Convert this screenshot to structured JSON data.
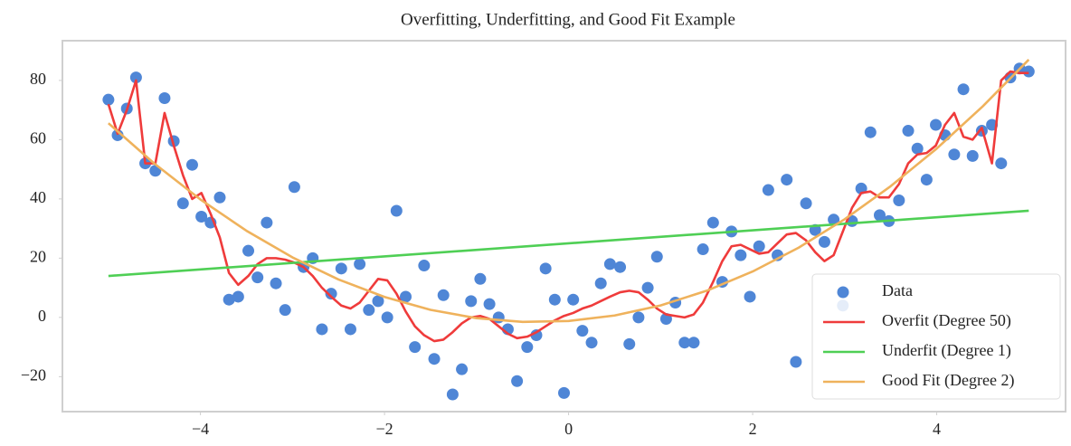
{
  "chart_data": {
    "type": "scatter",
    "title": "Overfitting, Underfitting, and Good Fit Example",
    "xlim": [
      -5.5,
      5.4
    ],
    "ylim": [
      -31.8,
      93.4
    ],
    "xticks": [
      {
        "value": -4,
        "label": "−4"
      },
      {
        "value": -2,
        "label": "−2"
      },
      0,
      2,
      4
    ],
    "yticks": [
      {
        "value": -20,
        "label": "−20"
      },
      0,
      20,
      40,
      60,
      80
    ],
    "grid": false,
    "legend": "lower right",
    "series": [
      {
        "name": "Data",
        "type": "scatter",
        "color": "#4f86d6",
        "x": [
          -5.0,
          -4.9,
          -4.8,
          -4.7,
          -4.6,
          -4.49,
          -4.39,
          -4.29,
          -4.19,
          -4.09,
          -3.99,
          -3.89,
          -3.79,
          -3.69,
          -3.59,
          -3.48,
          -3.38,
          -3.28,
          -3.18,
          -3.08,
          -2.98,
          -2.88,
          -2.78,
          -2.68,
          -2.58,
          -2.47,
          -2.37,
          -2.27,
          -2.17,
          -2.07,
          -1.97,
          -1.87,
          -1.77,
          -1.67,
          -1.57,
          -1.46,
          -1.36,
          -1.26,
          -1.16,
          -1.06,
          -0.96,
          -0.86,
          -0.76,
          -0.66,
          -0.56,
          -0.45,
          -0.35,
          -0.25,
          -0.15,
          -0.05,
          0.05,
          0.15,
          0.25,
          0.35,
          0.45,
          0.56,
          0.66,
          0.76,
          0.86,
          0.96,
          1.06,
          1.16,
          1.26,
          1.36,
          1.46,
          1.57,
          1.67,
          1.77,
          1.87,
          1.97,
          2.07,
          2.17,
          2.27,
          2.37,
          2.47,
          2.58,
          2.68,
          2.78,
          2.88,
          2.98,
          3.08,
          3.18,
          3.28,
          3.38,
          3.48,
          3.59,
          3.69,
          3.79,
          3.89,
          3.99,
          4.09,
          4.19,
          4.29,
          4.39,
          4.49,
          4.6,
          4.7,
          4.8,
          4.9,
          5.0
        ],
        "values": [
          73.5,
          61.5,
          70.5,
          81,
          52,
          49.5,
          74,
          59.5,
          38.5,
          51.5,
          34,
          32,
          40.5,
          6,
          7,
          22.5,
          13.5,
          32,
          11.5,
          2.5,
          44,
          17,
          20,
          -4,
          8,
          16.5,
          -4,
          18,
          2.5,
          5.5,
          0,
          36,
          7,
          -10,
          17.5,
          -14,
          7.5,
          -26,
          -17.5,
          5.5,
          13,
          4.5,
          0,
          -4,
          -21.5,
          -10,
          -6,
          16.5,
          6,
          -25.5,
          6,
          -4.5,
          -8.5,
          11.5,
          18,
          17,
          -9,
          0,
          10,
          20.5,
          -0.5,
          5,
          -8.5,
          -8.5,
          23,
          32,
          12,
          29,
          21,
          7,
          24,
          43,
          21,
          46.5,
          -15,
          38.5,
          29.5,
          25.5,
          33,
          4,
          32.5,
          43.5,
          62.5,
          34.5,
          32.5,
          39.5,
          63,
          57,
          46.5,
          65,
          61.5,
          55,
          77,
          54.5,
          63,
          65,
          52,
          81,
          84,
          83
        ]
      },
      {
        "name": "Overfit (Degree 50)",
        "type": "line",
        "color": "#ef3b3b",
        "x": [
          -5.0,
          -4.9,
          -4.8,
          -4.7,
          -4.6,
          -4.49,
          -4.39,
          -4.29,
          -4.19,
          -4.09,
          -3.99,
          -3.89,
          -3.79,
          -3.69,
          -3.59,
          -3.48,
          -3.38,
          -3.28,
          -3.18,
          -3.08,
          -2.98,
          -2.88,
          -2.78,
          -2.68,
          -2.58,
          -2.47,
          -2.37,
          -2.27,
          -2.17,
          -2.07,
          -1.97,
          -1.87,
          -1.77,
          -1.67,
          -1.57,
          -1.46,
          -1.36,
          -1.26,
          -1.16,
          -1.06,
          -0.96,
          -0.86,
          -0.76,
          -0.66,
          -0.56,
          -0.45,
          -0.35,
          -0.25,
          -0.15,
          -0.05,
          0.05,
          0.15,
          0.25,
          0.35,
          0.45,
          0.56,
          0.66,
          0.76,
          0.86,
          0.96,
          1.06,
          1.16,
          1.26,
          1.36,
          1.46,
          1.57,
          1.67,
          1.77,
          1.87,
          1.97,
          2.07,
          2.17,
          2.27,
          2.37,
          2.47,
          2.58,
          2.68,
          2.78,
          2.88,
          2.98,
          3.08,
          3.18,
          3.28,
          3.38,
          3.48,
          3.59,
          3.69,
          3.79,
          3.89,
          3.99,
          4.09,
          4.19,
          4.29,
          4.39,
          4.49,
          4.6,
          4.7,
          4.8,
          4.9,
          5.0
        ],
        "values": [
          72,
          62,
          70,
          80,
          52,
          52,
          69,
          58,
          48,
          40,
          42,
          35,
          27,
          15,
          11,
          14,
          18,
          20,
          20,
          19.5,
          18.5,
          17,
          14,
          10,
          7,
          4,
          3,
          5,
          9,
          13,
          12.5,
          8,
          2,
          -3,
          -6,
          -8,
          -7.5,
          -5,
          -2,
          0,
          0.5,
          -0.5,
          -3,
          -5.5,
          -7,
          -6.5,
          -5,
          -3,
          -1,
          0.5,
          1.5,
          3,
          4,
          5.5,
          7,
          8.5,
          9,
          8.5,
          6,
          3,
          1,
          0.5,
          0,
          1,
          5,
          12,
          19,
          24,
          24.5,
          23,
          21.5,
          22,
          25,
          28,
          28.5,
          26,
          22,
          19,
          21,
          29,
          37,
          42,
          42.5,
          40.5,
          40.5,
          45,
          52,
          55,
          55.5,
          58,
          65,
          69,
          61,
          60,
          64,
          52,
          80,
          83,
          82.5,
          82.5
        ]
      },
      {
        "name": "Underfit (Degree 1)",
        "type": "line",
        "color": "#4fcf55",
        "x": [
          -5,
          5
        ],
        "values": [
          14,
          36
        ]
      },
      {
        "name": "Good Fit (Degree 2)",
        "type": "line",
        "color": "#efb25c",
        "x": [
          -5,
          -4.5,
          -4,
          -3.5,
          -3,
          -2.5,
          -2,
          -1.5,
          -1,
          -0.5,
          0,
          0.5,
          1,
          1.5,
          2,
          2.5,
          3,
          3.5,
          4,
          4.5,
          5
        ],
        "values": [
          65.55,
          51.9,
          39.8,
          29.25,
          20.25,
          12.8,
          6.9,
          2.55,
          -0.25,
          -1.5,
          -1.2,
          0.65,
          4.05,
          9,
          15.5,
          23.55,
          33.15,
          44.3,
          57,
          71.25,
          87
        ]
      }
    ]
  }
}
